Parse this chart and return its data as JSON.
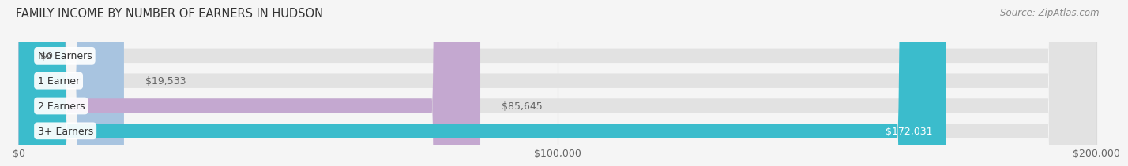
{
  "title": "FAMILY INCOME BY NUMBER OF EARNERS IN HUDSON",
  "source": "Source: ZipAtlas.com",
  "categories": [
    "No Earners",
    "1 Earner",
    "2 Earners",
    "3+ Earners"
  ],
  "values": [
    0,
    19533,
    85645,
    172031
  ],
  "bar_colors": [
    "#f08080",
    "#a8c4e0",
    "#c4a8d0",
    "#3bbccc"
  ],
  "label_colors": [
    "#666666",
    "#666666",
    "#666666",
    "#ffffff"
  ],
  "x_max": 200000,
  "x_ticks": [
    0,
    100000,
    200000
  ],
  "x_tick_labels": [
    "$0",
    "$100,000",
    "$200,000"
  ],
  "background_color": "#f5f5f5",
  "bar_bg_color": "#e2e2e2",
  "title_fontsize": 10.5,
  "source_fontsize": 8.5,
  "tick_fontsize": 9,
  "label_fontsize": 9,
  "category_fontsize": 9
}
